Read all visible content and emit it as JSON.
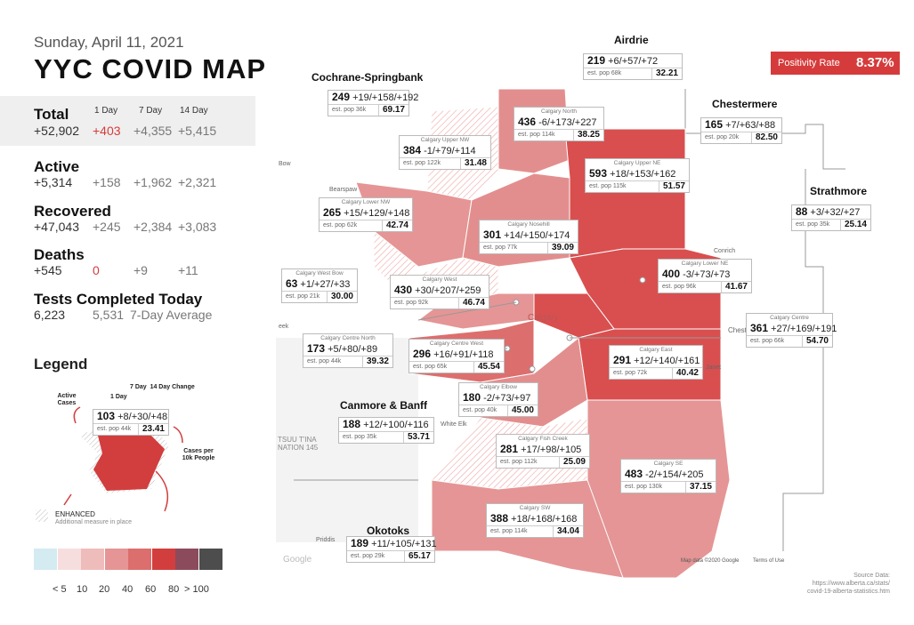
{
  "header": {
    "date": "Sunday, April 11, 2021",
    "title": "YYC COVID MAP"
  },
  "columns": {
    "d1": "1 Day",
    "d7": "7 Day",
    "d14": "14 Day"
  },
  "total": {
    "label": "Total",
    "value": "+52,902",
    "d1": "+403",
    "d7": "+4,355",
    "d14": "+5,415"
  },
  "active": {
    "label": "Active",
    "value": "+5,314",
    "d1": "+158",
    "d7": "+1,962",
    "d14": "+2,321"
  },
  "recovered": {
    "label": "Recovered",
    "value": "+47,043",
    "d1": "+245",
    "d7": "+2,384",
    "d14": "+3,083"
  },
  "deaths": {
    "label": "Deaths",
    "value": "+545",
    "d1": "0",
    "d7": "+9",
    "d14": "+11"
  },
  "tests": {
    "label": "Tests Completed Today",
    "value": "6,223",
    "avg": "5,531",
    "avg_label": "7-Day Average"
  },
  "legend": {
    "title": "Legend",
    "active_cases": "Active Cases",
    "one_day": "1 Day",
    "seven_fourteen": "7 Day  14 Day Change",
    "sample_cases": "103",
    "sample_change": "+8/+30/+48",
    "sample_pop": "est. pop 44k",
    "sample_rate": "23.41",
    "cases_per": "Cases per 10k People",
    "enhanced": "ENHANCED",
    "enhanced_sub": "Additional measure in place",
    "scale_labels": [
      "< 5",
      "10",
      "20",
      "40",
      "60",
      "80",
      "> 100"
    ],
    "scale_colors": [
      "#d4ebf2",
      "#f7dede",
      "#efbcbc",
      "#e59595",
      "#dd6e6e",
      "#d23e3e",
      "#8c4b5c",
      "#4d4d4d"
    ]
  },
  "positivity": {
    "label": "Positivity Rate",
    "value": "8.37%"
  },
  "source": {
    "line1": "Source Data:",
    "line2": "https://www.alberta.ca/stats/",
    "line3": "covid-19-alberta-statistics.htm"
  },
  "map_labels": {
    "copyright": "Map data ©2020 Google",
    "terms": "Terms of Use",
    "google": "Google",
    "calgary": "Calgary",
    "conrich": "Conrich",
    "janet": "Janet",
    "priddis": "Priddis",
    "white_elk": "White Elk",
    "bearspaw": "Bearspaw",
    "chestermere_town": "Chestere",
    "tsuu_tina": "TSUU T'INA",
    "nation": "NATION 145",
    "bow": "Bow",
    "creek": "eek"
  },
  "regions": {
    "airdrie": "Airdrie",
    "cochrane": "Cochrane-Springbank",
    "chestermere": "Chestermere",
    "strathmore": "Strathmore",
    "canmore": "Canmore & Banff",
    "okotoks": "Okotoks"
  },
  "boxes": [
    {
      "id": "airdrie",
      "name": "",
      "cases": "219",
      "change": "+6/+57/+72",
      "pop": "est. pop 68k",
      "rate": "32.21"
    },
    {
      "id": "cochrane",
      "name": "",
      "cases": "249",
      "change": "+19/+158/+192",
      "pop": "est. pop 36k",
      "rate": "69.17"
    },
    {
      "id": "chestermere",
      "name": "",
      "cases": "165",
      "change": "+7/+63/+88",
      "pop": "est. pop 20k",
      "rate": "82.50"
    },
    {
      "id": "strathmore",
      "name": "",
      "cases": "88",
      "change": "+3/+32/+27",
      "pop": "est. pop 35k",
      "rate": "25.14"
    },
    {
      "id": "north",
      "name": "Calgary North",
      "cases": "436",
      "change": "-6/+173/+227",
      "pop": "est. pop 114k",
      "rate": "38.25"
    },
    {
      "id": "uppernw",
      "name": "Calgary Upper NW",
      "cases": "384",
      "change": "-1/+79/+114",
      "pop": "est. pop 122k",
      "rate": "31.48"
    },
    {
      "id": "upperne",
      "name": "Calgary Upper NE",
      "cases": "593",
      "change": "+18/+153/+162",
      "pop": "est. pop 115k",
      "rate": "51.57"
    },
    {
      "id": "lowernw",
      "name": "Calgary Lower NW",
      "cases": "265",
      "change": "+15/+129/+148",
      "pop": "est. pop 62k",
      "rate": "42.74"
    },
    {
      "id": "nosehill",
      "name": "Calgary Nosehill",
      "cases": "301",
      "change": "+14/+150/+174",
      "pop": "est. pop 77k",
      "rate": "39.09"
    },
    {
      "id": "westbow",
      "name": "Calgary West Bow",
      "cases": "63",
      "change": "+1/+27/+33",
      "pop": "est. pop 21k",
      "rate": "30.00"
    },
    {
      "id": "west",
      "name": "Calgary West",
      "cases": "430",
      "change": "+30/+207/+259",
      "pop": "est. pop 92k",
      "rate": "46.74"
    },
    {
      "id": "lowerne",
      "name": "Calgary Lower NE",
      "cases": "400",
      "change": "-3/+73/+73",
      "pop": "est. pop 96k",
      "rate": "41.67"
    },
    {
      "id": "centrenorth",
      "name": "Calgary Centre North",
      "cases": "173",
      "change": "+5/+80/+89",
      "pop": "est. pop 44k",
      "rate": "39.32"
    },
    {
      "id": "centrewest",
      "name": "Calgary Centre West",
      "cases": "296",
      "change": "+16/+91/+118",
      "pop": "est. pop 65k",
      "rate": "45.54"
    },
    {
      "id": "centre",
      "name": "Calgary Centre",
      "cases": "361",
      "change": "+27/+169/+191",
      "pop": "est. pop 66k",
      "rate": "54.70"
    },
    {
      "id": "east",
      "name": "Calgary East",
      "cases": "291",
      "change": "+12/+140/+161",
      "pop": "est. pop 72k",
      "rate": "40.42"
    },
    {
      "id": "elbow",
      "name": "Calgary Elbow",
      "cases": "180",
      "change": "-2/+73/+97",
      "pop": "est. pop 40k",
      "rate": "45.00"
    },
    {
      "id": "canmore",
      "name": "",
      "cases": "188",
      "change": "+12/+100/+116",
      "pop": "est. pop 35k",
      "rate": "53.71"
    },
    {
      "id": "fishcreek",
      "name": "Calgary Fish Creek",
      "cases": "281",
      "change": "+17/+98/+105",
      "pop": "est. pop 112k",
      "rate": "25.09"
    },
    {
      "id": "se",
      "name": "Calgary SE",
      "cases": "483",
      "change": "-2/+154/+205",
      "pop": "est. pop 130k",
      "rate": "37.15"
    },
    {
      "id": "sw",
      "name": "Calgary SW",
      "cases": "388",
      "change": "+18/+168/+168",
      "pop": "est. pop 114k",
      "rate": "34.04"
    },
    {
      "id": "okotoks",
      "name": "",
      "cases": "189",
      "change": "+11/+105/+131",
      "pop": "est. pop 29k",
      "rate": "65.17"
    }
  ]
}
